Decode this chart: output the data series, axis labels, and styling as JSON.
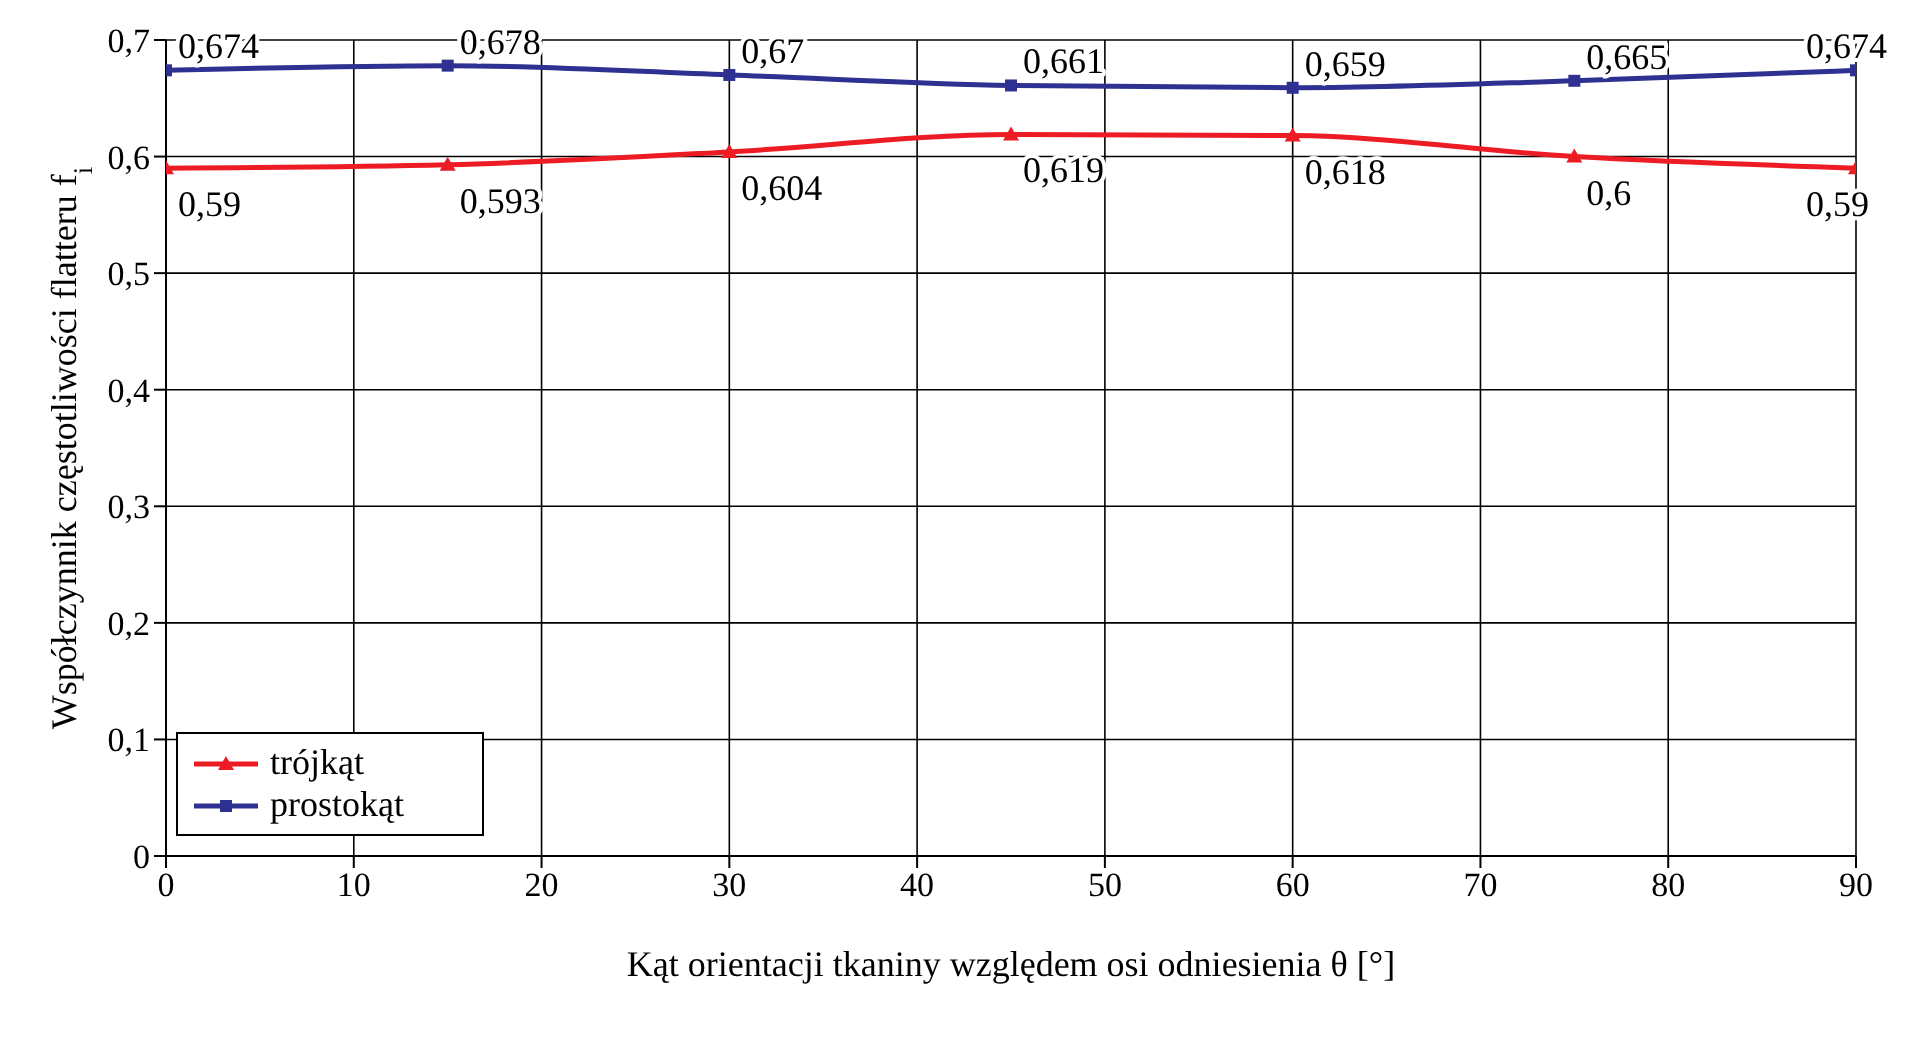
{
  "chart_data": {
    "type": "line",
    "xlabel": "Kąt orientacji tkaniny względem osi odniesienia θ [°]",
    "ylabel": "Współczynnik częstotliwości flatteru f$_{i}$",
    "x": [
      0,
      15,
      30,
      45,
      60,
      75,
      90
    ],
    "series": [
      {
        "name": "trójkąt",
        "color": "#ed1c24",
        "marker": "triangle",
        "values": [
          0.59,
          0.593,
          0.604,
          0.619,
          0.618,
          0.6,
          0.59
        ],
        "value_labels": [
          "0,59",
          "0,593",
          "0,604",
          "0,619",
          "0,618",
          "0,6",
          "0,59"
        ]
      },
      {
        "name": "prostokąt",
        "color": "#2e3192",
        "marker": "square",
        "values": [
          0.674,
          0.678,
          0.67,
          0.661,
          0.659,
          0.665,
          0.674
        ],
        "value_labels": [
          "0,674",
          "0,678",
          "0,67",
          "0,661",
          "0,659",
          "0,665",
          "0,674"
        ]
      }
    ],
    "xlim": [
      0,
      90
    ],
    "xticks": [
      0,
      10,
      20,
      30,
      40,
      50,
      60,
      70,
      80,
      90
    ],
    "ylim": [
      0,
      0.7
    ],
    "yticks": [
      {
        "value": 0,
        "label": "0"
      },
      {
        "value": 0.1,
        "label": "0,1"
      },
      {
        "value": 0.2,
        "label": "0,2"
      },
      {
        "value": 0.3,
        "label": "0,3"
      },
      {
        "value": 0.4,
        "label": "0,4"
      },
      {
        "value": 0.5,
        "label": "0,5"
      },
      {
        "value": 0.6,
        "label": "0,6"
      },
      {
        "value": 0.7,
        "label": "0,7"
      }
    ],
    "grid": true,
    "legend": "bottom left",
    "line_style": "solid"
  }
}
